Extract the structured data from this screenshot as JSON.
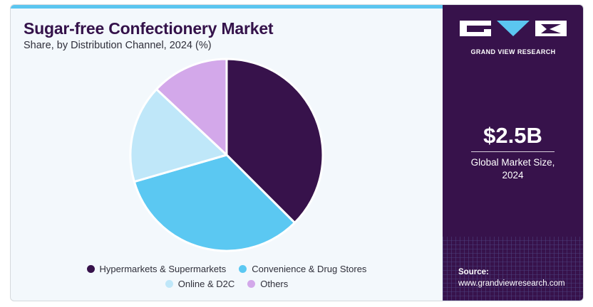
{
  "header": {
    "title": "Sugar-free Confectionery Market",
    "subtitle": "Share, by Distribution Channel, 2024 (%)"
  },
  "chart_data": {
    "type": "pie",
    "title": "Sugar-free Confectionery Market",
    "subtitle": "Share, by Distribution Channel, 2024 (%)",
    "categories": [
      "Hypermarkets & Supermarkets",
      "Convenience & Drug Stores",
      "Online & D2C",
      "Others"
    ],
    "values": [
      37.5,
      33.0,
      16.5,
      13.0
    ],
    "colors": [
      "#37124b",
      "#5bc8f2",
      "#bfe7f9",
      "#d3a8ea"
    ],
    "legend_position": "bottom"
  },
  "legend": {
    "items": [
      {
        "label": "Hypermarkets & Supermarkets",
        "color": "#37124b"
      },
      {
        "label": "Convenience & Drug Stores",
        "color": "#5bc8f2"
      },
      {
        "label": "Online & D2C",
        "color": "#bfe7f9"
      },
      {
        "label": "Others",
        "color": "#d3a8ea"
      }
    ]
  },
  "sidebar": {
    "brand": "GRAND VIEW RESEARCH",
    "market_size_value": "$2.5B",
    "market_size_label_line1": "Global Market Size,",
    "market_size_label_line2": "2024",
    "source_label": "Source:",
    "source_url": "www.grandviewresearch.com"
  },
  "colors": {
    "sidebar_bg": "#37124b",
    "accent": "#5bc6f0",
    "title": "#34124a"
  }
}
